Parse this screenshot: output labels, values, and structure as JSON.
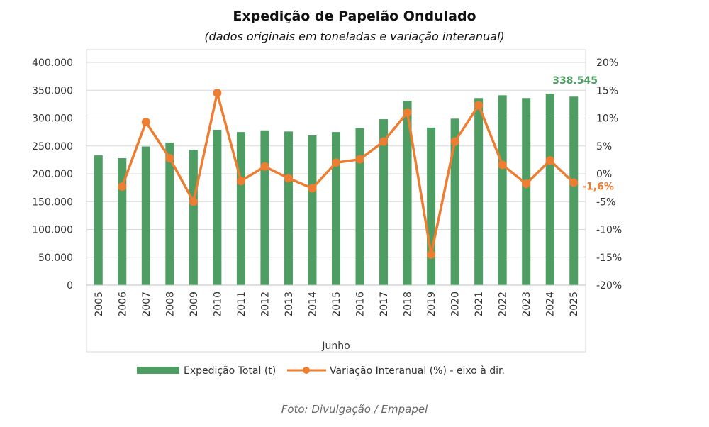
{
  "chart_data": {
    "type": "bar",
    "title": "Expedição de Papelão Ondulado",
    "subtitle": "(dados originais em toneladas e variação interanual)",
    "xlabel": "Junho",
    "categories": [
      "2005",
      "2006",
      "2007",
      "2008",
      "2009",
      "2010",
      "2011",
      "2012",
      "2013",
      "2014",
      "2015",
      "2016",
      "2017",
      "2018",
      "2019",
      "2020",
      "2021",
      "2022",
      "2023",
      "2024",
      "2025"
    ],
    "series": [
      {
        "name": "Expedição Total (t)",
        "type": "bar",
        "axis": "left",
        "color": "#4e9d63",
        "values": [
          233000,
          228000,
          249000,
          256000,
          243000,
          279000,
          275000,
          278000,
          276000,
          269000,
          275000,
          282000,
          298000,
          331000,
          283000,
          299000,
          336000,
          341000,
          336000,
          344000,
          338545
        ]
      },
      {
        "name": "Variação Interanual (%) - eixo à dir.",
        "type": "line",
        "axis": "right",
        "color": "#ed7d31",
        "values": [
          null,
          -2.3,
          9.3,
          2.8,
          -5.0,
          14.5,
          -1.3,
          1.3,
          -0.8,
          -2.6,
          2.0,
          2.6,
          5.8,
          11.0,
          -14.5,
          5.8,
          12.3,
          1.6,
          -1.8,
          2.4,
          -1.6
        ]
      }
    ],
    "y_left": {
      "lim": [
        0,
        400000
      ],
      "ticks": [
        0,
        50000,
        100000,
        150000,
        200000,
        250000,
        300000,
        350000,
        400000
      ],
      "tick_labels": [
        "0",
        "50.000",
        "100.000",
        "150.000",
        "200.000",
        "250.000",
        "300.000",
        "350.000",
        "400.000"
      ]
    },
    "y_right": {
      "lim": [
        -20,
        20
      ],
      "ticks": [
        -20,
        -15,
        -10,
        -5,
        0,
        5,
        10,
        15,
        20
      ],
      "tick_labels": [
        "-20%",
        "-15%",
        "-10%",
        "-5%",
        "0%",
        "5%",
        "10%",
        "15%",
        "20%"
      ]
    },
    "annotations": [
      {
        "text": "338.545",
        "category": "2025",
        "series": 0,
        "color": "#4e9d63"
      },
      {
        "text": "-1,6%",
        "category": "2025",
        "series": 1,
        "color": "#ed7d31"
      }
    ],
    "grid": true,
    "legend": "bottom"
  },
  "credit": "Foto: Divulgação / Empapel"
}
